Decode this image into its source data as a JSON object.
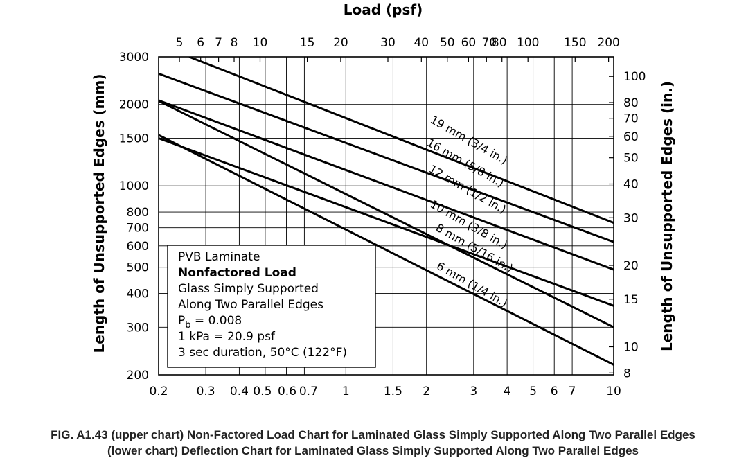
{
  "chart_data": {
    "type": "line",
    "x_scale": "log",
    "y_scale": "log",
    "xlabel_top": "Load (psf)",
    "ylabel_left": "Length of Unsupported Edges (mm)",
    "ylabel_right": "Length of Unsupported Edges (in.)",
    "xlim": [
      0.2,
      10
    ],
    "ylim": [
      200,
      3000
    ],
    "grid": true,
    "x_ticks": [
      {
        "v": 0.2,
        "label": "0.2"
      },
      {
        "v": 0.3,
        "label": "0.3"
      },
      {
        "v": 0.4,
        "label": "0.4"
      },
      {
        "v": 0.5,
        "label": "0.5"
      },
      {
        "v": 0.6,
        "label": "0.6"
      },
      {
        "v": 0.7,
        "label": "0.7"
      },
      {
        "v": 1,
        "label": "1"
      },
      {
        "v": 1.5,
        "label": "1.5"
      },
      {
        "v": 2,
        "label": "2"
      },
      {
        "v": 3,
        "label": "3"
      },
      {
        "v": 4,
        "label": "4"
      },
      {
        "v": 5,
        "label": "5"
      },
      {
        "v": 6,
        "label": "6"
      },
      {
        "v": 7,
        "label": "7"
      },
      {
        "v": 10,
        "label": "10"
      }
    ],
    "x_ticks_top": [
      {
        "v": 5,
        "label": "5"
      },
      {
        "v": 6,
        "label": "6"
      },
      {
        "v": 7,
        "label": "7"
      },
      {
        "v": 8,
        "label": "8"
      },
      {
        "v": 10,
        "label": "10"
      },
      {
        "v": 15,
        "label": "15"
      },
      {
        "v": 20,
        "label": "20"
      },
      {
        "v": 30,
        "label": "30"
      },
      {
        "v": 40,
        "label": "40"
      },
      {
        "v": 50,
        "label": "50"
      },
      {
        "v": 60,
        "label": "60"
      },
      {
        "v": 70,
        "label": "70"
      },
      {
        "v": 80,
        "label": "80"
      },
      {
        "v": 100,
        "label": "100"
      },
      {
        "v": 150,
        "label": "150"
      },
      {
        "v": 200,
        "label": "200"
      }
    ],
    "y_ticks": [
      {
        "v": 200,
        "label": "200"
      },
      {
        "v": 300,
        "label": "300"
      },
      {
        "v": 400,
        "label": "400"
      },
      {
        "v": 500,
        "label": "500"
      },
      {
        "v": 600,
        "label": "600"
      },
      {
        "v": 700,
        "label": "700"
      },
      {
        "v": 800,
        "label": "800"
      },
      {
        "v": 1000,
        "label": "1000"
      },
      {
        "v": 1500,
        "label": "1500"
      },
      {
        "v": 2000,
        "label": "2000"
      },
      {
        "v": 3000,
        "label": "3000"
      }
    ],
    "y_ticks_right": [
      {
        "v": 8,
        "label": "8"
      },
      {
        "v": 10,
        "label": "10"
      },
      {
        "v": 15,
        "label": "15"
      },
      {
        "v": 20,
        "label": "20"
      },
      {
        "v": 30,
        "label": "30"
      },
      {
        "v": 40,
        "label": "40"
      },
      {
        "v": 50,
        "label": "50"
      },
      {
        "v": 60,
        "label": "60"
      },
      {
        "v": 70,
        "label": "70"
      },
      {
        "v": 80,
        "label": "80"
      },
      {
        "v": 100,
        "label": "100"
      }
    ],
    "series": [
      {
        "name": "19 mm (3/4 in.)",
        "points": [
          [
            0.26,
            3000
          ],
          [
            10,
            730
          ]
        ]
      },
      {
        "name": "16 mm (5/8 in.)",
        "points": [
          [
            0.2,
            2600
          ],
          [
            10,
            620
          ]
        ]
      },
      {
        "name": "12 mm (1/2 in.)",
        "points": [
          [
            0.2,
            2070
          ],
          [
            10,
            490
          ]
        ]
      },
      {
        "name": "10 mm (3/8 in.)",
        "points": [
          [
            0.2,
            1500
          ],
          [
            10,
            360
          ]
        ]
      },
      {
        "name": "8 mm (5/16 in.)",
        "points": [
          [
            0.2,
            2060
          ],
          [
            10,
            300
          ]
        ]
      },
      {
        "name": "6 mm (1/4 in.)",
        "points": [
          [
            0.2,
            1540
          ],
          [
            10,
            218
          ]
        ]
      }
    ],
    "legend": {
      "lines": [
        {
          "text": "PVB Laminate",
          "bold": false
        },
        {
          "text": "Nonfactored Load",
          "bold": true
        },
        {
          "text": "Glass Simply Supported",
          "bold": false
        },
        {
          "text": "Along Two Parallel Edges",
          "bold": false
        },
        {
          "text": "P",
          "sub": "b",
          "rest": " = 0.008",
          "bold": false
        },
        {
          "text": "1 kPa = 20.9 psf",
          "bold": false
        },
        {
          "text": "3 sec duration, 50°C (122°F)",
          "bold": false
        }
      ]
    }
  },
  "caption": {
    "line1": "FIG. A1.43 (upper chart) Non-Factored Load Chart for Laminated Glass Simply Supported Along Two Parallel Edges",
    "line2": "(lower chart) Deflection Chart for Laminated Glass Simply Supported Along Two Parallel Edges"
  }
}
